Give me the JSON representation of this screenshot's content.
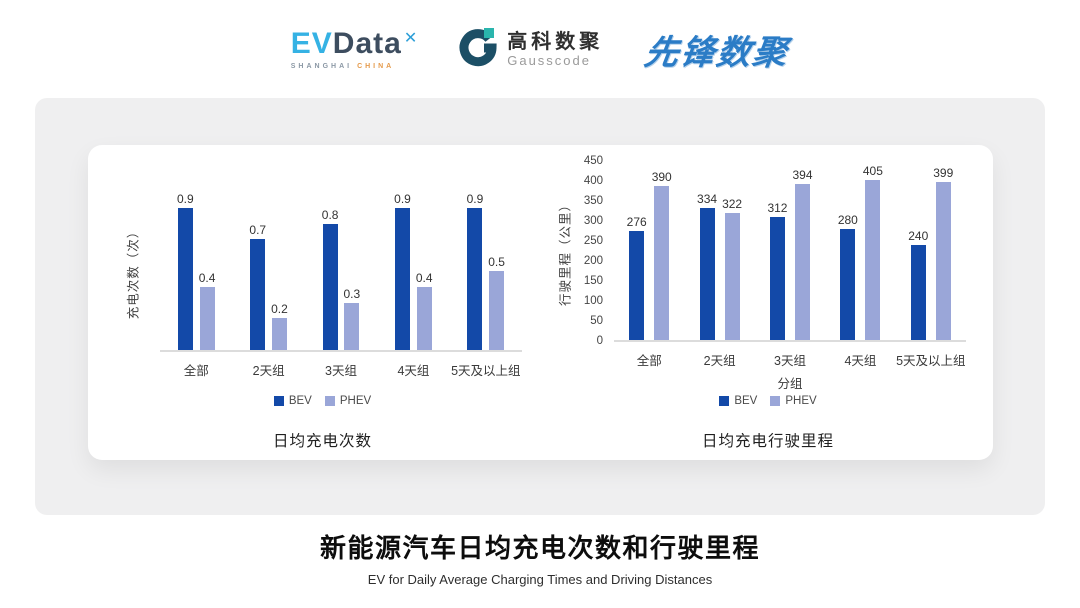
{
  "header": {
    "evdata": {
      "ev": "EV",
      "data": "Data",
      "mark": "✕",
      "sub_left": "SHANGHAI",
      "sub_right": "CHINA"
    },
    "gausscode": {
      "cn": "高科数聚",
      "en": "Gausscode"
    },
    "xianfeng": {
      "text": "先锋数聚"
    }
  },
  "colors": {
    "bev": "#1349a8",
    "phev": "#9aa6d8",
    "panel": "#efeff0",
    "card": "#ffffff"
  },
  "chart_data": [
    {
      "type": "bar",
      "title": "日均充电次数",
      "ylabel": "充电次数（次）",
      "xlabel": "",
      "categories": [
        "全部",
        "2天组",
        "3天组",
        "4天组",
        "5天及以上组"
      ],
      "series": [
        {
          "name": "BEV",
          "color": "#1349a8",
          "values": [
            0.9,
            0.7,
            0.8,
            0.9,
            0.9
          ]
        },
        {
          "name": "PHEV",
          "color": "#9aa6d8",
          "values": [
            0.4,
            0.2,
            0.3,
            0.4,
            0.5
          ]
        }
      ],
      "ylim": [
        0,
        1.0
      ],
      "yticks_visible": false,
      "grid": false,
      "legend_position": "bottom"
    },
    {
      "type": "bar",
      "title": "日均充电行驶里程",
      "ylabel": "行驶里程（公里）",
      "xlabel": "分组",
      "categories": [
        "全部",
        "2天组",
        "3天组",
        "4天组",
        "5天及以上组"
      ],
      "series": [
        {
          "name": "BEV",
          "color": "#1349a8",
          "values": [
            276,
            334,
            312,
            280,
            240
          ]
        },
        {
          "name": "PHEV",
          "color": "#9aa6d8",
          "values": [
            390,
            322,
            394,
            405,
            399
          ]
        }
      ],
      "ylim": [
        0,
        450
      ],
      "ytick_step": 50,
      "yticks_visible": true,
      "grid": false,
      "legend_position": "bottom"
    }
  ],
  "footer": {
    "title": "新能源汽车日均充电次数和行驶里程",
    "subtitle": "EV for Daily Average Charging Times and Driving Distances"
  }
}
